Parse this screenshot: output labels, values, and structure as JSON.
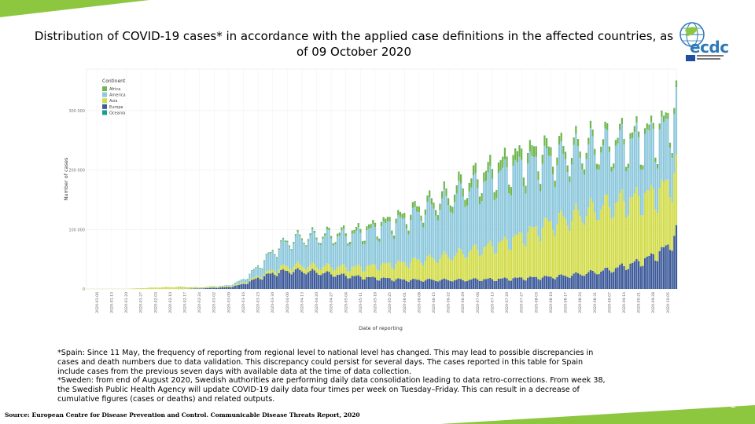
{
  "slide": {
    "title": "Distribution of COVID-19 cases* in accordance with the applied case definitions in the affected countries, as of 09 October 2020",
    "footnotes": [
      "*Spain: Since 11 May, the frequency of reporting from regional level to national level has changed. This may lead to possible discrepancies in cases and death numbers due to data validation. This discrepancy could persist for several days. The cases reported in this table for Spain include cases from the previous seven days with available data at the time of data collection.",
      "*Sweden: from end of August 2020, Swedish authorities are performing daily data consolidation leading to data retro-corrections. From week 38, the Swedish Public Health Agency will update COVID-19 daily data four times per week on Tuesday–Friday. This can result in a decrease of cumulative figures (cases or deaths) and related outputs."
    ],
    "source": "Source: European Centre for Disease Prevention and Control. Communicable Disease Threats Report, 2020",
    "page_number": "2",
    "logo": {
      "text": "ecdc",
      "icon": "ecdc-globe-logo-icon"
    },
    "colors": {
      "accent_green": "#8dc63f",
      "ecdc_blue": "#2e79b9"
    }
  },
  "chart_data": {
    "type": "bar",
    "stacked": true,
    "xlabel": "Date of reporting",
    "ylabel": "Number of cases",
    "ylim": [
      0,
      370000
    ],
    "yticks": [
      0,
      100000,
      200000,
      300000
    ],
    "ytick_labels": [
      "0",
      "100 000",
      "200 000",
      "300 000"
    ],
    "grid": true,
    "legend": {
      "title": "Continent",
      "position": "top-left",
      "entries": [
        "Africa",
        "America",
        "Asia",
        "Europe",
        "Oceania"
      ]
    },
    "colors": {
      "Africa": "#71b64c",
      "America": "#8dc8dc",
      "Asia": "#d2dc4a",
      "Europe": "#3d5a9a",
      "Oceania": "#18a08f"
    },
    "x_start": "2020-01-01",
    "x_end": "2020-10-09",
    "x_tick_labels": [
      "2020-01-06",
      "2020-01-13",
      "2020-01-20",
      "2020-01-27",
      "2020-02-03",
      "2020-02-10",
      "2020-02-17",
      "2020-02-24",
      "2020-03-02",
      "2020-03-09",
      "2020-03-16",
      "2020-03-23",
      "2020-03-30",
      "2020-04-06",
      "2020-04-13",
      "2020-04-20",
      "2020-04-27",
      "2020-05-04",
      "2020-05-11",
      "2020-05-18",
      "2020-05-25",
      "2020-06-01",
      "2020-06-08",
      "2020-06-15",
      "2020-06-22",
      "2020-06-29",
      "2020-07-06",
      "2020-07-13",
      "2020-07-20",
      "2020-07-27",
      "2020-08-03",
      "2020-08-10",
      "2020-08-17",
      "2020-08-24",
      "2020-08-31",
      "2020-09-07",
      "2020-09-14",
      "2020-09-21",
      "2020-09-28",
      "2020-10-05"
    ],
    "weekly_estimates": {
      "dates": [
        "2020-01-20",
        "2020-02-03",
        "2020-02-13",
        "2020-02-24",
        "2020-03-09",
        "2020-03-16",
        "2020-03-23",
        "2020-03-30",
        "2020-04-06",
        "2020-04-13",
        "2020-04-20",
        "2020-04-27",
        "2020-05-04",
        "2020-05-11",
        "2020-05-18",
        "2020-05-25",
        "2020-06-01",
        "2020-06-08",
        "2020-06-15",
        "2020-06-22",
        "2020-06-29",
        "2020-07-06",
        "2020-07-13",
        "2020-07-20",
        "2020-07-27",
        "2020-08-03",
        "2020-08-10",
        "2020-08-17",
        "2020-08-24",
        "2020-08-31",
        "2020-09-07",
        "2020-09-14",
        "2020-09-21",
        "2020-09-28",
        "2020-10-05",
        "2020-10-09"
      ],
      "series": [
        {
          "name": "Africa",
          "values": [
            0,
            0,
            0,
            100,
            300,
            500,
            1000,
            1500,
            2000,
            2500,
            3000,
            4000,
            5000,
            6000,
            6500,
            7000,
            8000,
            9000,
            10000,
            12000,
            14000,
            15000,
            16000,
            17000,
            17000,
            16000,
            14000,
            12000,
            11000,
            10000,
            9500,
            9000,
            9000,
            9000,
            9500,
            10000
          ]
        },
        {
          "name": "America",
          "values": [
            0,
            0,
            0,
            100,
            800,
            5000,
            15000,
            30000,
            40000,
            45000,
            48000,
            50000,
            52000,
            55000,
            60000,
            65000,
            70000,
            78000,
            85000,
            90000,
            100000,
            105000,
            110000,
            115000,
            115000,
            110000,
            105000,
            100000,
            100000,
            100000,
            95000,
            95000,
            95000,
            95000,
            95000,
            100000
          ]
        },
        {
          "name": "Asia",
          "values": [
            200,
            2500,
            3500,
            1500,
            1500,
            2000,
            3000,
            5000,
            8000,
            9000,
            10000,
            12000,
            14000,
            16000,
            20000,
            24000,
            28000,
            33000,
            36000,
            40000,
            45000,
            50000,
            55000,
            62000,
            70000,
            80000,
            90000,
            95000,
            100000,
            105000,
            108000,
            108000,
            105000,
            103000,
            102000,
            105000
          ]
        },
        {
          "name": "Europe",
          "values": [
            0,
            0,
            0,
            800,
            3000,
            8000,
            18000,
            26000,
            30000,
            30000,
            28000,
            25000,
            22000,
            20000,
            18000,
            17000,
            15000,
            15000,
            15000,
            15000,
            15000,
            16000,
            16000,
            17000,
            18000,
            19000,
            20000,
            22000,
            25000,
            28000,
            32000,
            38000,
            45000,
            55000,
            70000,
            95000
          ]
        },
        {
          "name": "Oceania",
          "values": [
            0,
            0,
            0,
            0,
            50,
            200,
            300,
            400,
            300,
            100,
            50,
            20,
            20,
            20,
            20,
            20,
            20,
            20,
            20,
            20,
            30,
            100,
            200,
            400,
            600,
            500,
            400,
            200,
            100,
            50,
            30,
            20,
            20,
            20,
            20,
            20
          ]
        }
      ]
    }
  }
}
